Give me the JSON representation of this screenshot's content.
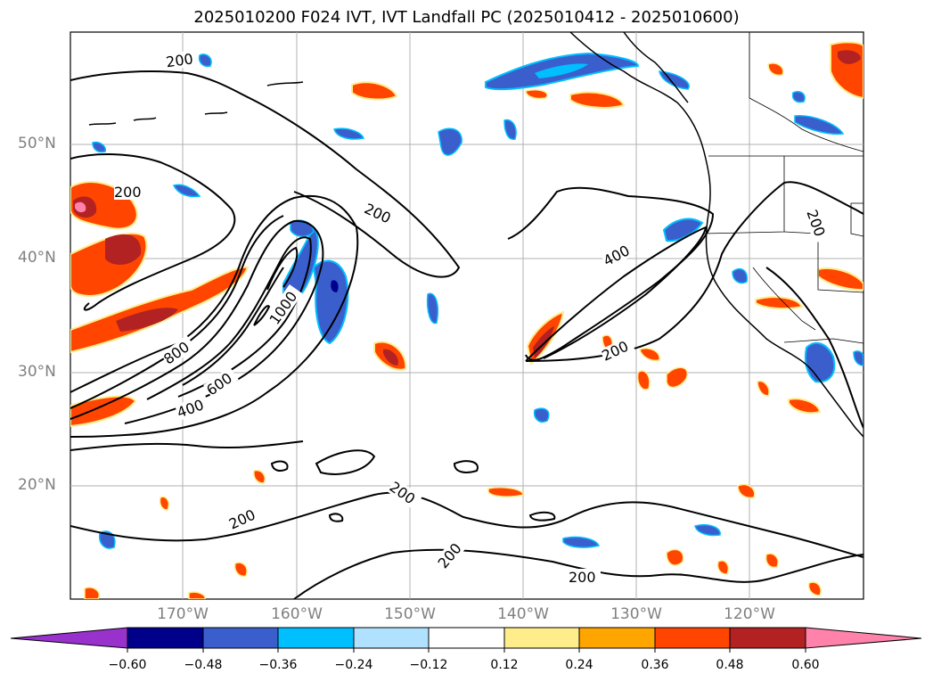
{
  "title": "2025010200 F024 IVT, IVT Landfall PC (2025010412 - 2025010600)",
  "lat_labels": [
    "50°N",
    "40°N",
    "30°N",
    "20°N"
  ],
  "lon_labels": [
    "170°W",
    "160°W",
    "150°W",
    "140°W",
    "130°W",
    "120°W"
  ],
  "contour_labels": [
    "200",
    "200",
    "200",
    "200",
    "200",
    "200",
    "200",
    "200",
    "200",
    "400",
    "400",
    "600",
    "800",
    "1000"
  ],
  "colorbar": {
    "ticks": [
      "−0.60",
      "−0.48",
      "−0.36",
      "−0.24",
      "−0.12",
      "0.12",
      "0.24",
      "0.36",
      "0.48",
      "0.60"
    ],
    "colors": [
      "#9932cc",
      "#00008b",
      "#3a5fcd",
      "#00bfff",
      "#b0e2ff",
      "#ffffff",
      "#ffec8b",
      "#ffa500",
      "#ff4500",
      "#b22222",
      "#ff82ab"
    ]
  },
  "colors": {
    "grid": "#b0b0b0",
    "tick_text": "#808080",
    "contour": "#000000"
  }
}
